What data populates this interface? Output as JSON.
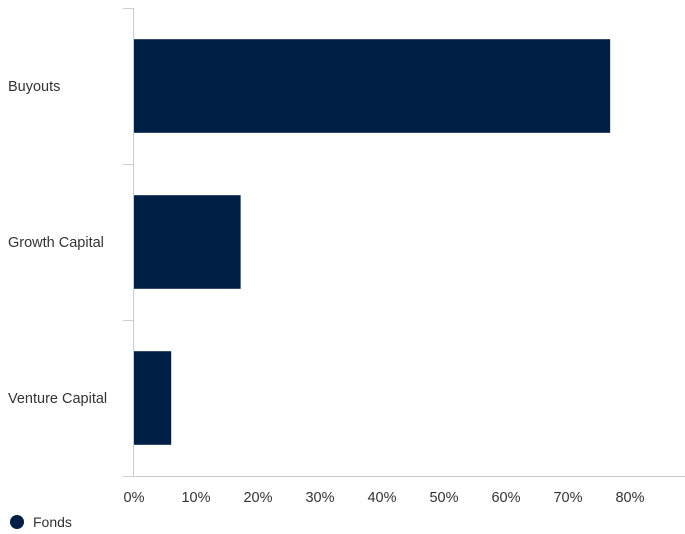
{
  "chart_data": {
    "type": "bar",
    "orientation": "horizontal",
    "categories": [
      "Buyouts",
      "Growth Capital",
      "Venture Capital"
    ],
    "series": [
      {
        "name": "Fonds",
        "values": [
          76.8,
          17.2,
          6.0
        ],
        "color": "#001f45"
      }
    ],
    "xlim": [
      0,
      80
    ],
    "x_ticks": [
      "0%",
      "10%",
      "20%",
      "30%",
      "40%",
      "50%",
      "60%",
      "70%",
      "80%"
    ],
    "grid": false,
    "legend_position": "bottom-left"
  },
  "legend": {
    "label": "Fonds",
    "color": "#001f45"
  }
}
